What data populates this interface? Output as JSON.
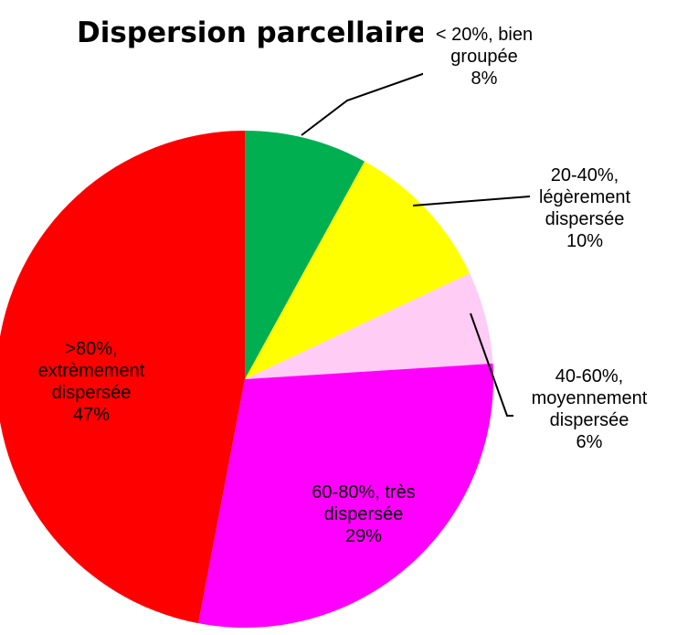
{
  "chart_data": {
    "type": "pie",
    "title": "Dispersion parcellaire",
    "categories": [
      "< 20%, bien groupée",
      "20-40%, légèrement dispersée",
      "40-60%, moyennement dispersée",
      "60-80%, très dispersée",
      ">80%, extrèmement dispersée"
    ],
    "values": [
      8,
      10,
      6,
      29,
      47
    ],
    "value_labels": [
      "8%",
      "10%",
      "6%",
      "29%",
      "47%"
    ],
    "colors": [
      "#00b050",
      "#ffff00",
      "#ffccf5",
      "#ff00ff",
      "#ff0000"
    ]
  }
}
